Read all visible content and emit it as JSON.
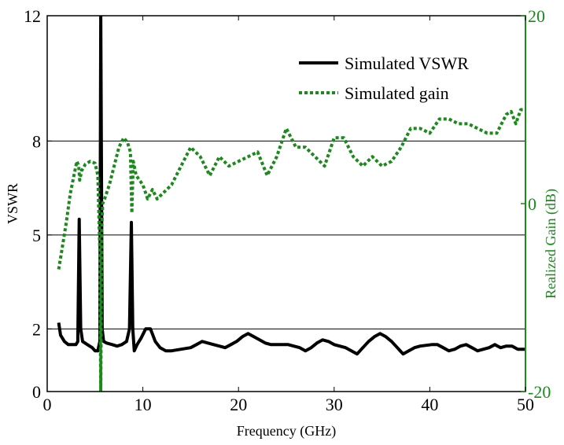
{
  "chart_data": {
    "type": "line",
    "xlabel": "Frequency (GHz)",
    "ylabel": "VSWR",
    "y2label": "Realized Gain (dB)",
    "xlim": [
      0,
      50
    ],
    "ylim": [
      0,
      12
    ],
    "y2lim": [
      -20,
      20
    ],
    "x_ticks": [
      0,
      10,
      20,
      30,
      40,
      50
    ],
    "y_ticks": [
      0,
      2,
      5,
      8,
      12
    ],
    "y2_ticks": [
      -20,
      0,
      20
    ],
    "grid": "horizontal at left-axis ticks",
    "legend_position": "top-right",
    "colors": {
      "vswr": "#000000",
      "gain": "#1a8a1a",
      "right_axis": "#1a8a1a"
    },
    "series": [
      {
        "name": "Simulated VSWR",
        "axis": "left",
        "style": "solid",
        "x": [
          1.2,
          1.4,
          1.8,
          2.2,
          2.6,
          3.0,
          3.2,
          3.35,
          3.5,
          3.7,
          4.2,
          4.7,
          5.0,
          5.3,
          5.5,
          5.6,
          5.75,
          5.9,
          6.2,
          6.8,
          7.3,
          7.8,
          8.3,
          8.6,
          8.8,
          8.95,
          9.1,
          9.4,
          9.8,
          10.3,
          10.8,
          11.3,
          11.8,
          12.4,
          13.0,
          14.0,
          15.0,
          15.6,
          16.2,
          17.4,
          18.0,
          18.6,
          19.2,
          19.8,
          20.4,
          21.0,
          21.6,
          22.2,
          22.8,
          23.4,
          24.0,
          25.2,
          26.4,
          27.0,
          27.6,
          28.2,
          28.8,
          29.4,
          30.0,
          31.2,
          32.4,
          33.0,
          33.6,
          34.2,
          34.8,
          35.4,
          36.0,
          36.6,
          37.2,
          37.8,
          38.4,
          39.0,
          40.2,
          40.8,
          41.4,
          42.0,
          42.6,
          43.2,
          43.8,
          44.4,
          45.0,
          45.6,
          46.2,
          46.8,
          47.4,
          48.0,
          48.6,
          49.2,
          50.0
        ],
        "y": [
          2.2,
          1.8,
          1.6,
          1.5,
          1.5,
          1.5,
          1.6,
          5.5,
          2.0,
          1.6,
          1.5,
          1.4,
          1.3,
          1.3,
          1.6,
          12.0,
          2.0,
          1.6,
          1.55,
          1.5,
          1.45,
          1.5,
          1.6,
          2.0,
          5.4,
          2.0,
          1.3,
          1.5,
          1.7,
          2.0,
          2.0,
          1.6,
          1.4,
          1.3,
          1.3,
          1.35,
          1.4,
          1.5,
          1.6,
          1.5,
          1.45,
          1.4,
          1.5,
          1.6,
          1.75,
          1.85,
          1.75,
          1.65,
          1.55,
          1.5,
          1.5,
          1.5,
          1.4,
          1.3,
          1.4,
          1.55,
          1.65,
          1.6,
          1.5,
          1.4,
          1.2,
          1.4,
          1.6,
          1.75,
          1.85,
          1.75,
          1.6,
          1.4,
          1.2,
          1.3,
          1.4,
          1.45,
          1.5,
          1.5,
          1.4,
          1.3,
          1.35,
          1.45,
          1.5,
          1.4,
          1.3,
          1.35,
          1.4,
          1.5,
          1.4,
          1.45,
          1.45,
          1.35,
          1.35
        ]
      },
      {
        "name": "Simulated gain",
        "axis": "right",
        "style": "dotted",
        "x": [
          1.2,
          1.6,
          2.0,
          2.4,
          2.8,
          3.1,
          3.3,
          3.4,
          3.6,
          4.0,
          4.5,
          5.0,
          5.3,
          5.5,
          5.6,
          5.7,
          5.8,
          6.0,
          6.5,
          7.0,
          7.5,
          8.0,
          8.4,
          8.7,
          8.85,
          9.0,
          9.3,
          10.0,
          10.5,
          11.0,
          11.5,
          12.0,
          13.0,
          14.0,
          15.0,
          16.0,
          17.0,
          18.0,
          19.0,
          20.0,
          21.0,
          22.0,
          23.0,
          24.0,
          25.0,
          26.0,
          27.0,
          28.0,
          29.0,
          30.0,
          31.0,
          32.0,
          33.0,
          34.0,
          35.0,
          36.0,
          37.0,
          38.0,
          39.0,
          40.0,
          41.0,
          42.0,
          43.0,
          44.0,
          45.0,
          46.0,
          47.0,
          48.0,
          48.5,
          49.0,
          49.5,
          50.0
        ],
        "y": [
          -7,
          -4.5,
          -2,
          1,
          3,
          4.5,
          4,
          2.5,
          3.5,
          4.2,
          4.5,
          4.3,
          3,
          -5,
          -20,
          -3,
          0,
          0.5,
          2,
          4,
          6,
          7,
          6.5,
          5.5,
          -1,
          4.5,
          3,
          2,
          0.5,
          1.5,
          0.5,
          1.0,
          2,
          4,
          6,
          5,
          3,
          5,
          4,
          4.5,
          5,
          5.5,
          3,
          5,
          8,
          6,
          6,
          5,
          4,
          7,
          7,
          5,
          4,
          5,
          4,
          4.5,
          6,
          8,
          8,
          7.5,
          9,
          9,
          8.5,
          8.5,
          8,
          7.5,
          7.5,
          9.5,
          9.8,
          8.5,
          10,
          10
        ]
      }
    ]
  }
}
